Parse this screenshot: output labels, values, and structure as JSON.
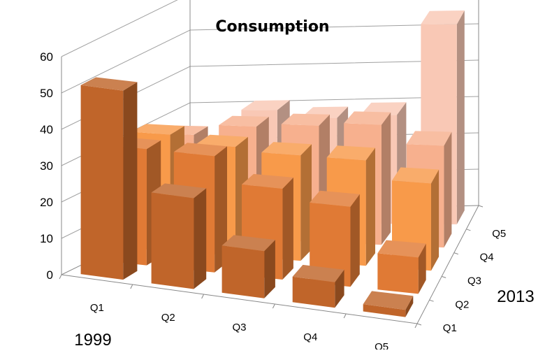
{
  "chart_data": {
    "type": "bar",
    "title": "Consumption",
    "corner_labels": [
      "1999",
      "2013"
    ],
    "categories": [
      "Q1",
      "Q2",
      "Q3",
      "Q4",
      "Q5"
    ],
    "depth_categories": [
      "Q1",
      "Q2",
      "Q3",
      "Q4",
      "Q5"
    ],
    "yticks": [
      0,
      10,
      20,
      30,
      40,
      50,
      60
    ],
    "ylim": [
      0,
      60
    ],
    "grid": true,
    "series": [
      {
        "values": [
          52,
          25,
          13,
          7,
          2
        ],
        "color": "#C0652A"
      },
      {
        "values": [
          32,
          32,
          25,
          22,
          10
        ],
        "color": "#E07A35"
      },
      {
        "values": [
          32,
          30,
          29,
          29,
          24
        ],
        "color": "#F89A4A"
      },
      {
        "values": [
          28,
          31,
          32,
          33,
          28
        ],
        "color": "#F7B08E"
      },
      {
        "values": [
          20,
          31,
          29,
          30,
          55
        ],
        "color": "#F9C8B5"
      }
    ]
  }
}
